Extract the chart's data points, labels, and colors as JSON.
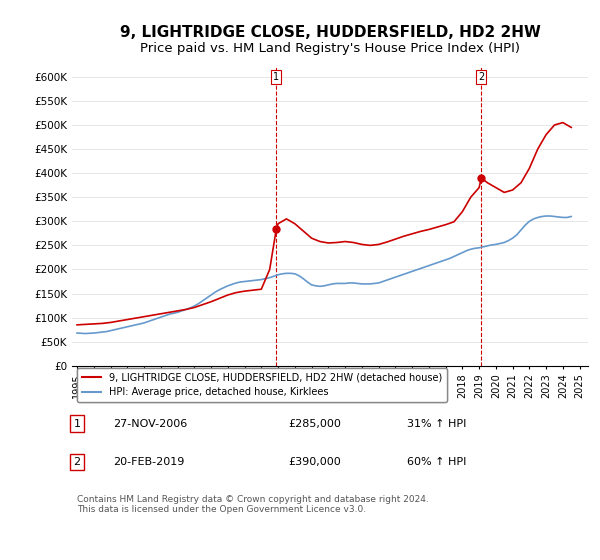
{
  "title": "9, LIGHTRIDGE CLOSE, HUDDERSFIELD, HD2 2HW",
  "subtitle": "Price paid vs. HM Land Registry's House Price Index (HPI)",
  "title_fontsize": 11,
  "subtitle_fontsize": 9.5,
  "ylim": [
    0,
    620000
  ],
  "yticks": [
    0,
    50000,
    100000,
    150000,
    200000,
    250000,
    300000,
    350000,
    400000,
    450000,
    500000,
    550000,
    600000
  ],
  "ytick_labels": [
    "£0",
    "£50K",
    "£100K",
    "£150K",
    "£200K",
    "£250K",
    "£300K",
    "£350K",
    "£400K",
    "£450K",
    "£500K",
    "£550K",
    "£600K"
  ],
  "xlabel_years": [
    1995,
    1996,
    1997,
    1998,
    1999,
    2000,
    2001,
    2002,
    2003,
    2004,
    2005,
    2006,
    2007,
    2008,
    2009,
    2010,
    2011,
    2012,
    2013,
    2014,
    2015,
    2016,
    2017,
    2018,
    2019,
    2020,
    2021,
    2022,
    2023,
    2024,
    2025
  ],
  "sale1_date": 2006.9,
  "sale1_price": 285000,
  "sale1_label": "27-NOV-2006",
  "sale1_pct": "31% ↑ HPI",
  "sale2_date": 2019.13,
  "sale2_price": 390000,
  "sale2_label": "20-FEB-2019",
  "sale2_pct": "60% ↑ HPI",
  "red_line_color": "#cc0000",
  "blue_line_color": "#6699cc",
  "vline_color": "#cc0000",
  "legend_label_red": "9, LIGHTRIDGE CLOSE, HUDDERSFIELD, HD2 2HW (detached house)",
  "legend_label_blue": "HPI: Average price, detached house, Kirklees",
  "footnote": "Contains HM Land Registry data © Crown copyright and database right 2024.\nThis data is licensed under the Open Government Licence v3.0.",
  "table_rows": [
    {
      "num": "1",
      "date": "27-NOV-2006",
      "price": "£285,000",
      "pct": "31% ↑ HPI"
    },
    {
      "num": "2",
      "date": "20-FEB-2019",
      "price": "£390,000",
      "pct": "60% ↑ HPI"
    }
  ],
  "hpi_x": [
    1995.0,
    1995.25,
    1995.5,
    1995.75,
    1996.0,
    1996.25,
    1996.5,
    1996.75,
    1997.0,
    1997.25,
    1997.5,
    1997.75,
    1998.0,
    1998.25,
    1998.5,
    1998.75,
    1999.0,
    1999.25,
    1999.5,
    1999.75,
    2000.0,
    2000.25,
    2000.5,
    2000.75,
    2001.0,
    2001.25,
    2001.5,
    2001.75,
    2002.0,
    2002.25,
    2002.5,
    2002.75,
    2003.0,
    2003.25,
    2003.5,
    2003.75,
    2004.0,
    2004.25,
    2004.5,
    2004.75,
    2005.0,
    2005.25,
    2005.5,
    2005.75,
    2006.0,
    2006.25,
    2006.5,
    2006.75,
    2007.0,
    2007.25,
    2007.5,
    2007.75,
    2008.0,
    2008.25,
    2008.5,
    2008.75,
    2009.0,
    2009.25,
    2009.5,
    2009.75,
    2010.0,
    2010.25,
    2010.5,
    2010.75,
    2011.0,
    2011.25,
    2011.5,
    2011.75,
    2012.0,
    2012.25,
    2012.5,
    2012.75,
    2013.0,
    2013.25,
    2013.5,
    2013.75,
    2014.0,
    2014.25,
    2014.5,
    2014.75,
    2015.0,
    2015.25,
    2015.5,
    2015.75,
    2016.0,
    2016.25,
    2016.5,
    2016.75,
    2017.0,
    2017.25,
    2017.5,
    2017.75,
    2018.0,
    2018.25,
    2018.5,
    2018.75,
    2019.0,
    2019.25,
    2019.5,
    2019.75,
    2020.0,
    2020.25,
    2020.5,
    2020.75,
    2021.0,
    2021.25,
    2021.5,
    2021.75,
    2022.0,
    2022.25,
    2022.5,
    2022.75,
    2023.0,
    2023.25,
    2023.5,
    2023.75,
    2024.0,
    2024.25,
    2024.5
  ],
  "hpi_y": [
    68000,
    67500,
    67000,
    67500,
    68000,
    69000,
    70000,
    71000,
    73000,
    75000,
    77000,
    79000,
    81000,
    83000,
    85000,
    87000,
    89000,
    92000,
    95000,
    98000,
    101000,
    104000,
    107000,
    109000,
    111000,
    114000,
    117000,
    120000,
    124000,
    129000,
    135000,
    141000,
    147000,
    153000,
    158000,
    162000,
    166000,
    169000,
    172000,
    174000,
    175000,
    176000,
    177000,
    178000,
    179000,
    181000,
    183000,
    186000,
    189000,
    191000,
    192000,
    192000,
    191000,
    187000,
    181000,
    174000,
    168000,
    166000,
    165000,
    166000,
    168000,
    170000,
    171000,
    171000,
    171000,
    172000,
    172000,
    171000,
    170000,
    170000,
    170000,
    171000,
    172000,
    175000,
    178000,
    181000,
    184000,
    187000,
    190000,
    193000,
    196000,
    199000,
    202000,
    205000,
    208000,
    211000,
    214000,
    217000,
    220000,
    223000,
    227000,
    231000,
    235000,
    239000,
    242000,
    244000,
    245000,
    247000,
    249000,
    251000,
    252000,
    254000,
    256000,
    260000,
    265000,
    272000,
    282000,
    292000,
    300000,
    305000,
    308000,
    310000,
    311000,
    311000,
    310000,
    309000,
    308000,
    308000,
    310000
  ],
  "red_x": [
    1995.0,
    1995.5,
    1996.0,
    1996.5,
    1997.0,
    1997.5,
    1998.0,
    1998.5,
    1999.0,
    1999.5,
    2000.0,
    2000.5,
    2001.0,
    2001.5,
    2002.0,
    2002.5,
    2003.0,
    2003.5,
    2004.0,
    2004.5,
    2005.0,
    2005.5,
    2006.0,
    2006.5,
    2006.9,
    2007.0,
    2007.5,
    2008.0,
    2008.5,
    2009.0,
    2009.5,
    2010.0,
    2010.5,
    2011.0,
    2011.5,
    2012.0,
    2012.5,
    2013.0,
    2013.5,
    2014.0,
    2014.5,
    2015.0,
    2015.5,
    2016.0,
    2016.5,
    2017.0,
    2017.5,
    2018.0,
    2018.5,
    2019.0,
    2019.13,
    2019.5,
    2020.0,
    2020.5,
    2021.0,
    2021.5,
    2022.0,
    2022.5,
    2023.0,
    2023.5,
    2024.0,
    2024.5
  ],
  "red_y": [
    85000,
    86000,
    87000,
    88000,
    90000,
    93000,
    96000,
    99000,
    102000,
    105000,
    108000,
    111000,
    114000,
    117000,
    121000,
    127000,
    133000,
    140000,
    147000,
    152000,
    155000,
    157000,
    159000,
    200000,
    285000,
    295000,
    305000,
    295000,
    280000,
    265000,
    258000,
    255000,
    256000,
    258000,
    256000,
    252000,
    250000,
    252000,
    257000,
    263000,
    269000,
    274000,
    279000,
    283000,
    288000,
    293000,
    299000,
    320000,
    350000,
    370000,
    390000,
    380000,
    370000,
    360000,
    365000,
    380000,
    410000,
    450000,
    480000,
    500000,
    505000,
    495000
  ]
}
